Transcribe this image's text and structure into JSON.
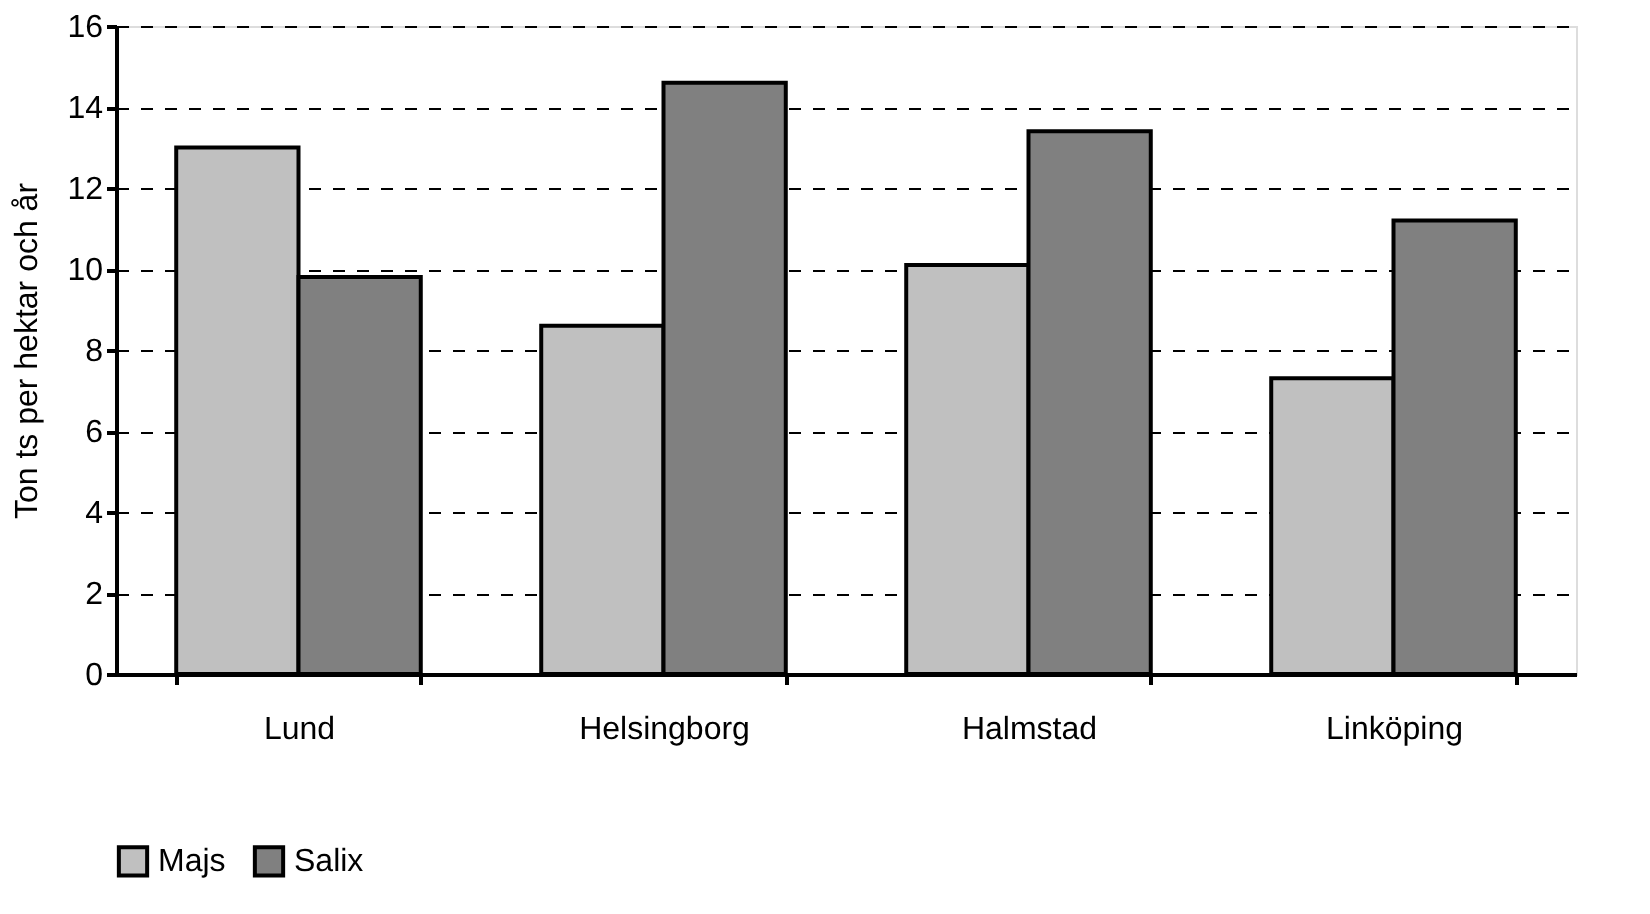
{
  "chart_data": {
    "type": "bar",
    "ylabel": "Ton ts per hektar och år",
    "categories": [
      "Lund",
      "Helsingborg",
      "Halmstad",
      "Linköping"
    ],
    "series": [
      {
        "name": "Majs",
        "color": "#c0c0c0",
        "values": [
          13.0,
          8.6,
          10.1,
          7.3
        ]
      },
      {
        "name": "Salix",
        "color": "#808080",
        "values": [
          9.8,
          14.6,
          13.4,
          11.2
        ]
      }
    ],
    "ylim": [
      0,
      16
    ],
    "yticks": [
      0,
      2,
      4,
      6,
      8,
      10,
      12,
      14,
      16
    ],
    "grid": "y",
    "legend": "bottom"
  }
}
